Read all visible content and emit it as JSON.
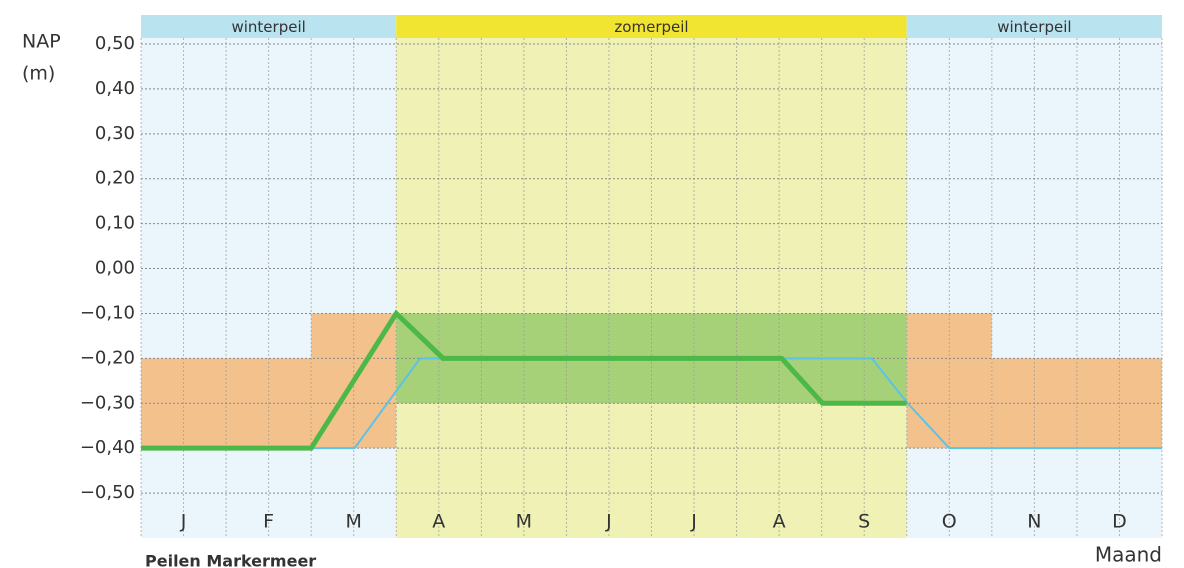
{
  "chart_data": {
    "type": "line",
    "title": "Peilen Markermeer",
    "y_label": [
      "NAP",
      "(m)"
    ],
    "x_label": "Maand",
    "categories": [
      "J",
      "F",
      "M",
      "A",
      "M",
      "J",
      "J",
      "A",
      "S",
      "O",
      "N",
      "D"
    ],
    "xlim": [
      0,
      12
    ],
    "ylim": [
      -0.6,
      0.5
    ],
    "yticks": [
      {
        "value": 0.5,
        "label": "0,50"
      },
      {
        "value": 0.4,
        "label": "0,40"
      },
      {
        "value": 0.3,
        "label": "0,30"
      },
      {
        "value": 0.2,
        "label": "0,20"
      },
      {
        "value": 0.1,
        "label": "0,10"
      },
      {
        "value": 0,
        "label": "0,00"
      },
      {
        "value": -0.1,
        "label": "−0,10"
      },
      {
        "value": -0.2,
        "label": "−0,20"
      },
      {
        "value": -0.3,
        "label": "−0,30"
      },
      {
        "value": -0.4,
        "label": "−0,40"
      },
      {
        "value": -0.5,
        "label": "−0,50"
      }
    ],
    "grid": true,
    "periods": [
      {
        "label": "winterpeil",
        "x": [
          0,
          3
        ],
        "color": "#b9e3ef",
        "background": "#eaf6fb"
      },
      {
        "label": "zomerpeil",
        "x": [
          3,
          9
        ],
        "color": "#f2e532",
        "background": "#eff2b4"
      },
      {
        "label": "winterpeil",
        "x": [
          9,
          12
        ],
        "color": "#b9e3ef",
        "background": "#eaf6fb"
      }
    ],
    "ranges": [
      {
        "x": [
          0,
          2
        ],
        "low": -0.4,
        "high": -0.2,
        "color": "#f3c18b"
      },
      {
        "x": [
          2,
          3
        ],
        "low": -0.4,
        "high": -0.1,
        "color": "#f3c18b"
      },
      {
        "x": [
          3,
          9
        ],
        "low": -0.3,
        "high": -0.1,
        "color": "#a7d178"
      },
      {
        "x": [
          9,
          10
        ],
        "low": -0.4,
        "high": -0.1,
        "color": "#f3c18b"
      },
      {
        "x": [
          10,
          12
        ],
        "low": -0.4,
        "high": -0.2,
        "color": "#f3c18b"
      }
    ],
    "series": [
      {
        "color": "#5bc2e8",
        "width": 2,
        "x": [
          0,
          2.51,
          3.28,
          8.59,
          9.01,
          9.5,
          12
        ],
        "values": [
          -0.4,
          -0.4,
          -0.2,
          -0.2,
          -0.3,
          -0.4,
          -0.4
        ]
      },
      {
        "color": "#4cb848",
        "width": 5,
        "x": [
          0,
          2.0,
          3.0,
          3.55,
          7.53,
          8.01,
          9.0
        ],
        "values": [
          -0.4,
          -0.4,
          -0.1,
          -0.2,
          -0.2,
          -0.3,
          -0.3
        ]
      }
    ]
  }
}
